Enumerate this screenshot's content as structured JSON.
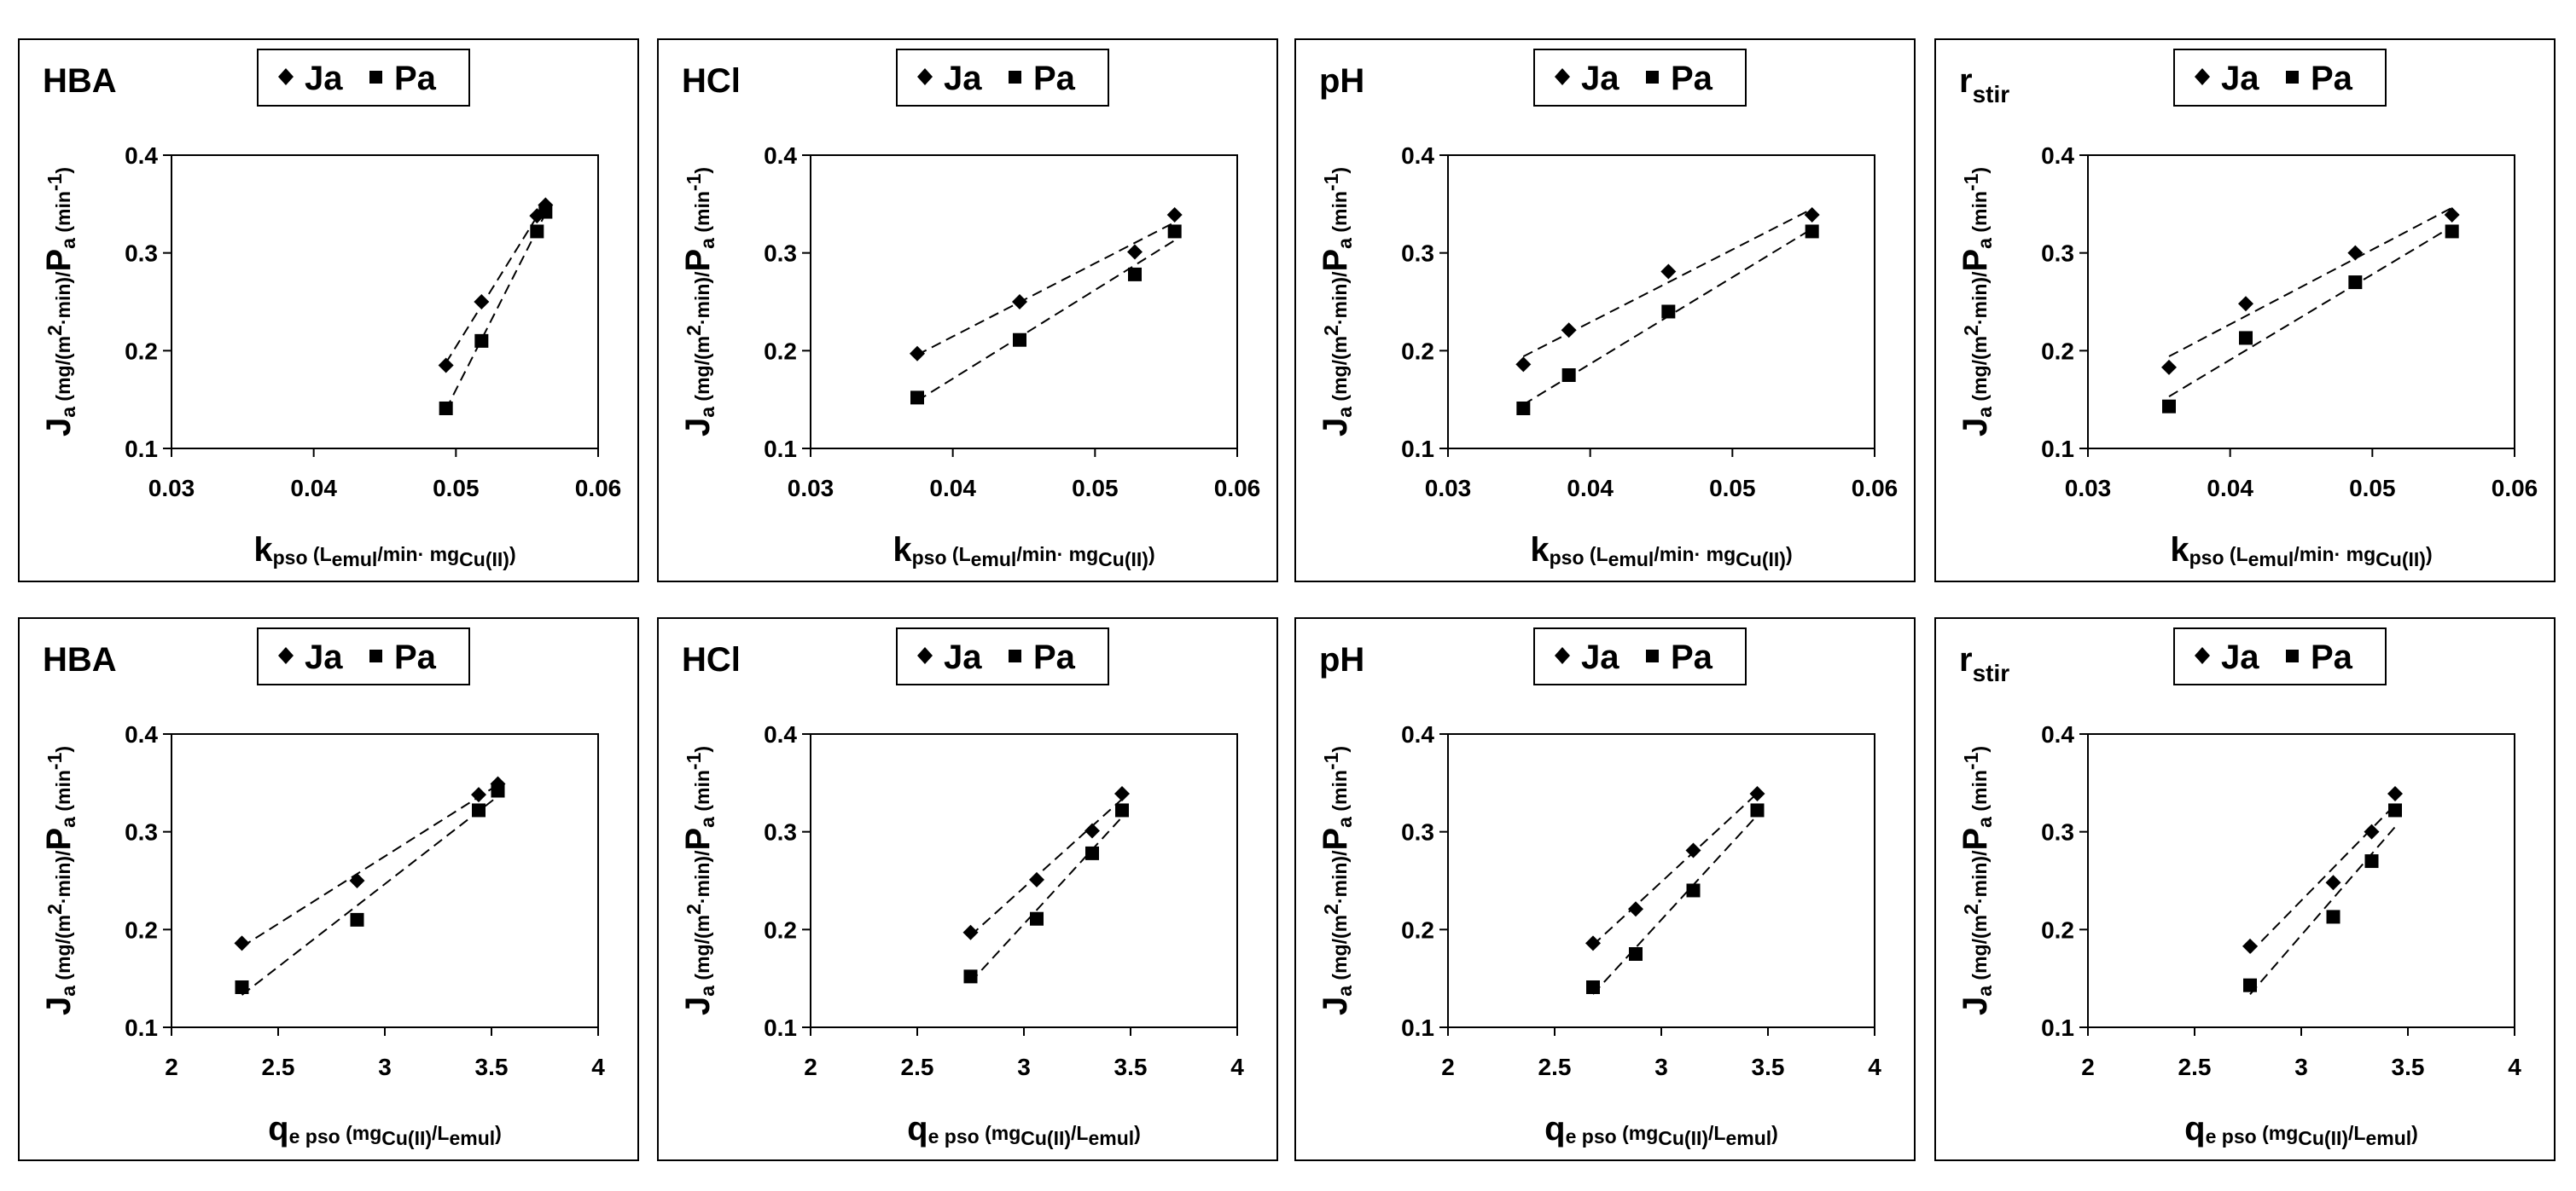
{
  "legend_labels": [
    "Ja",
    "Pa"
  ],
  "x_label_k": {
    "main": "k",
    "sub": "pso",
    "unit_a": "L",
    "unit_a_sub": "emul",
    "unit_b": "/min· mg",
    "unit_b_sub": "Cu(II)",
    "close": ")",
    "open": " ("
  },
  "x_label_q": {
    "main": "q",
    "sub": "e pso",
    "open": " (mg",
    "unit_sub": "Cu(II)",
    "mid": "/L",
    "unit_sub2": "emul",
    "close": ")"
  },
  "y_label": {
    "ja": "J",
    "ja_sub": "a",
    "unit1": " (mg/(m",
    "sup2": "2",
    "unit2": "·min)/",
    "pa": "P",
    "pa_sub": "a",
    "unit3": " (min",
    "supm1": "-1",
    "close": ")"
  },
  "chart_data": [
    {
      "type": "scatter",
      "title": "HBA",
      "title_sub": "",
      "xlim": [
        0.03,
        0.06
      ],
      "xticks": [
        "0.03",
        "0.04",
        "0.05",
        "0.06"
      ],
      "ylim": [
        0.1,
        0.4
      ],
      "yticks": [
        "0.1",
        "0.2",
        "0.3",
        "0.4"
      ],
      "xaxis": "k",
      "series": [
        {
          "name": "Ja",
          "marker": "diamond",
          "x": [
            0.0493,
            0.0518,
            0.0557,
            0.0563
          ],
          "y": [
            0.185,
            0.25,
            0.338,
            0.349
          ]
        },
        {
          "name": "Pa",
          "marker": "square",
          "x": [
            0.0493,
            0.0518,
            0.0557,
            0.0563
          ],
          "y": [
            0.141,
            0.21,
            0.322,
            0.342
          ]
        }
      ]
    },
    {
      "type": "scatter",
      "title": "HCl",
      "title_sub": "",
      "xlim": [
        0.03,
        0.06
      ],
      "xticks": [
        "0.03",
        "0.04",
        "0.05",
        "0.06"
      ],
      "ylim": [
        0.1,
        0.4
      ],
      "yticks": [
        "0.1",
        "0.2",
        "0.3",
        "0.4"
      ],
      "xaxis": "k",
      "series": [
        {
          "name": "Ja",
          "marker": "diamond",
          "x": [
            0.0375,
            0.0447,
            0.0528,
            0.0556
          ],
          "y": [
            0.197,
            0.25,
            0.301,
            0.339
          ]
        },
        {
          "name": "Pa",
          "marker": "square",
          "x": [
            0.0375,
            0.0447,
            0.0528,
            0.0556
          ],
          "y": [
            0.152,
            0.211,
            0.278,
            0.322
          ]
        }
      ]
    },
    {
      "type": "scatter",
      "title": "pH",
      "title_sub": "",
      "xlim": [
        0.03,
        0.06
      ],
      "xticks": [
        "0.03",
        "0.04",
        "0.05",
        "0.06"
      ],
      "ylim": [
        0.1,
        0.4
      ],
      "yticks": [
        "0.1",
        "0.2",
        "0.3",
        "0.4"
      ],
      "xaxis": "k",
      "series": [
        {
          "name": "Ja",
          "marker": "diamond",
          "x": [
            0.0353,
            0.0385,
            0.0455,
            0.0556
          ],
          "y": [
            0.186,
            0.221,
            0.281,
            0.339
          ]
        },
        {
          "name": "Pa",
          "marker": "square",
          "x": [
            0.0353,
            0.0385,
            0.0455,
            0.0556
          ],
          "y": [
            0.141,
            0.175,
            0.24,
            0.322
          ]
        }
      ]
    },
    {
      "type": "scatter",
      "title": "r",
      "title_sub": "stir",
      "xlim": [
        0.03,
        0.06
      ],
      "xticks": [
        "0.03",
        "0.04",
        "0.05",
        "0.06"
      ],
      "ylim": [
        0.1,
        0.4
      ],
      "yticks": [
        "0.1",
        "0.2",
        "0.3",
        "0.4"
      ],
      "xaxis": "k",
      "series": [
        {
          "name": "Ja",
          "marker": "diamond",
          "x": [
            0.0357,
            0.0411,
            0.0488,
            0.0556
          ],
          "y": [
            0.183,
            0.248,
            0.3,
            0.339
          ]
        },
        {
          "name": "Pa",
          "marker": "square",
          "x": [
            0.0357,
            0.0411,
            0.0488,
            0.0556
          ],
          "y": [
            0.143,
            0.213,
            0.27,
            0.322
          ]
        }
      ]
    },
    {
      "type": "scatter",
      "title": "HBA",
      "title_sub": "",
      "xlim": [
        2,
        4
      ],
      "xticks": [
        "2",
        "2.5",
        "3",
        "3.5",
        "4"
      ],
      "ylim": [
        0.1,
        0.4
      ],
      "yticks": [
        "0.1",
        "0.2",
        "0.3",
        "0.4"
      ],
      "xaxis": "q",
      "series": [
        {
          "name": "Ja",
          "marker": "diamond",
          "x": [
            2.33,
            2.87,
            3.44,
            3.53
          ],
          "y": [
            0.186,
            0.25,
            0.338,
            0.349
          ]
        },
        {
          "name": "Pa",
          "marker": "square",
          "x": [
            2.33,
            2.87,
            3.44,
            3.53
          ],
          "y": [
            0.141,
            0.21,
            0.322,
            0.342
          ]
        }
      ]
    },
    {
      "type": "scatter",
      "title": "HCl",
      "title_sub": "",
      "xlim": [
        2,
        4
      ],
      "xticks": [
        "2",
        "2.5",
        "3",
        "3.5",
        "4"
      ],
      "ylim": [
        0.1,
        0.4
      ],
      "yticks": [
        "0.1",
        "0.2",
        "0.3",
        "0.4"
      ],
      "xaxis": "q",
      "series": [
        {
          "name": "Ja",
          "marker": "diamond",
          "x": [
            2.75,
            3.06,
            3.32,
            3.46
          ],
          "y": [
            0.197,
            0.251,
            0.301,
            0.339
          ]
        },
        {
          "name": "Pa",
          "marker": "square",
          "x": [
            2.75,
            3.06,
            3.32,
            3.46
          ],
          "y": [
            0.152,
            0.211,
            0.278,
            0.322
          ]
        }
      ]
    },
    {
      "type": "scatter",
      "title": "pH",
      "title_sub": "",
      "xlim": [
        2,
        4
      ],
      "xticks": [
        "2",
        "2.5",
        "3",
        "3.5",
        "4"
      ],
      "ylim": [
        0.1,
        0.4
      ],
      "yticks": [
        "0.1",
        "0.2",
        "0.3",
        "0.4"
      ],
      "xaxis": "q",
      "series": [
        {
          "name": "Ja",
          "marker": "diamond",
          "x": [
            2.68,
            2.88,
            3.15,
            3.45
          ],
          "y": [
            0.186,
            0.221,
            0.281,
            0.339
          ]
        },
        {
          "name": "Pa",
          "marker": "square",
          "x": [
            2.68,
            2.88,
            3.15,
            3.45
          ],
          "y": [
            0.141,
            0.175,
            0.24,
            0.322
          ]
        }
      ]
    },
    {
      "type": "scatter",
      "title": "r",
      "title_sub": "stir",
      "xlim": [
        2,
        4
      ],
      "xticks": [
        "2",
        "2.5",
        "3",
        "3.5",
        "4"
      ],
      "ylim": [
        0.1,
        0.4
      ],
      "yticks": [
        "0.1",
        "0.2",
        "0.3",
        "0.4"
      ],
      "xaxis": "q",
      "series": [
        {
          "name": "Ja",
          "marker": "diamond",
          "x": [
            2.76,
            3.15,
            3.33,
            3.44
          ],
          "y": [
            0.183,
            0.248,
            0.3,
            0.339
          ]
        },
        {
          "name": "Pa",
          "marker": "square",
          "x": [
            2.76,
            3.15,
            3.33,
            3.44
          ],
          "y": [
            0.143,
            0.213,
            0.27,
            0.322
          ]
        }
      ]
    }
  ]
}
